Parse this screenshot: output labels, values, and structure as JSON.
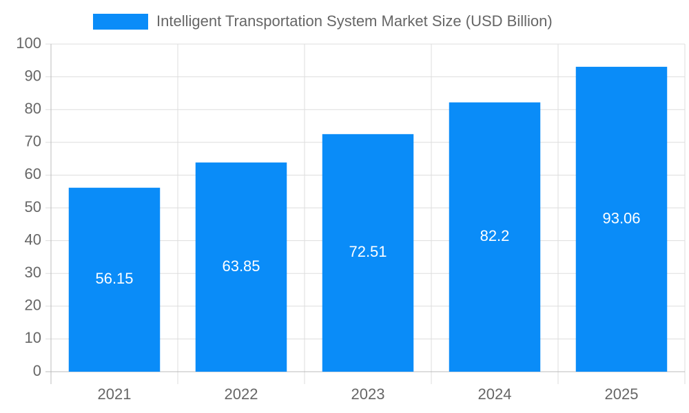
{
  "chart_data": {
    "type": "bar",
    "categories": [
      "2021",
      "2022",
      "2023",
      "2024",
      "2025"
    ],
    "series": [
      {
        "name": "Intelligent Transportation System Market Size (USD Billion)",
        "color": "#0a8cf8",
        "values": [
          56.15,
          63.85,
          72.51,
          82.2,
          93.06
        ]
      }
    ],
    "ylim": [
      0,
      100
    ],
    "yticks": [
      0,
      10,
      20,
      30,
      40,
      50,
      60,
      70,
      80,
      90,
      100
    ],
    "grid": true,
    "legend": "top"
  }
}
